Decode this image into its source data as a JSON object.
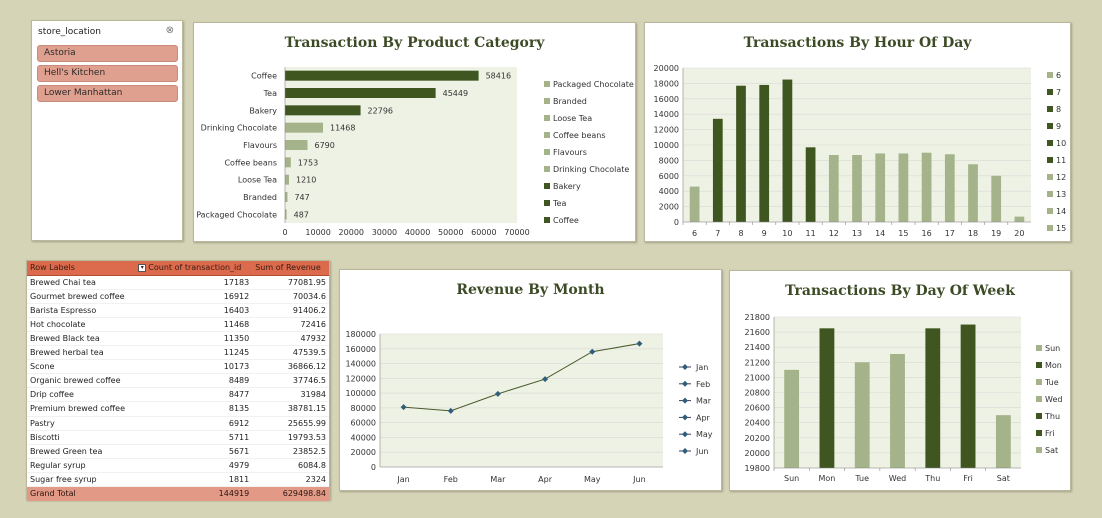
{
  "slicer": {
    "title": "store_location",
    "items": [
      "Astoria",
      "Hell's Kitchen",
      "Lower Manhattan"
    ]
  },
  "pivot": {
    "headers": [
      "Row Labels",
      "Count of transaction_id",
      "Sum of  Revenue"
    ],
    "rows": [
      [
        "Brewed Chai tea",
        "17183",
        "77081.95"
      ],
      [
        "Gourmet brewed coffee",
        "16912",
        "70034.6"
      ],
      [
        "Barista Espresso",
        "16403",
        "91406.2"
      ],
      [
        "Hot chocolate",
        "11468",
        "72416"
      ],
      [
        "Brewed Black tea",
        "11350",
        "47932"
      ],
      [
        "Brewed herbal tea",
        "11245",
        "47539.5"
      ],
      [
        "Scone",
        "10173",
        "36866.12"
      ],
      [
        "Organic brewed coffee",
        "8489",
        "37746.5"
      ],
      [
        "Drip coffee",
        "8477",
        "31984"
      ],
      [
        "Premium brewed coffee",
        "8135",
        "38781.15"
      ],
      [
        "Pastry",
        "6912",
        "25655.99"
      ],
      [
        "Biscotti",
        "5711",
        "19793.53"
      ],
      [
        "Brewed Green tea",
        "5671",
        "23852.5"
      ],
      [
        "Regular syrup",
        "4979",
        "6084.8"
      ],
      [
        "Sugar free syrup",
        "1811",
        "2324"
      ]
    ],
    "total": [
      "Grand Total",
      "144919",
      "629498.84"
    ]
  },
  "colors": {
    "dark": "#3f5621",
    "light": "#a4b38a",
    "plot_bg": "#eef2e4",
    "grid": "#d8d8d8"
  },
  "chart_data": [
    {
      "id": "category",
      "type": "bar",
      "title": "Transaction By Product Category",
      "categories": [
        "Coffee",
        "Tea",
        "Bakery",
        "Drinking Chocolate",
        "Flavours",
        "Coffee beans",
        "Loose Tea",
        "Branded",
        "Packaged Chocolate"
      ],
      "values": [
        58416,
        45449,
        22796,
        11468,
        6790,
        1753,
        1210,
        747,
        487
      ],
      "dark_categories": [
        "Coffee",
        "Tea",
        "Bakery"
      ],
      "xlim": [
        0,
        70000
      ],
      "xticks": [
        0,
        10000,
        20000,
        30000,
        40000,
        50000,
        60000,
        70000
      ],
      "legend": [
        "Packaged Chocolate",
        "Branded",
        "Loose Tea",
        "Coffee beans",
        "Flavours",
        "Drinking Chocolate",
        "Bakery",
        "Tea",
        "Coffee"
      ],
      "legend_position": "right"
    },
    {
      "id": "hour",
      "type": "bar",
      "title": "Transactions By Hour Of Day",
      "categories": [
        "6",
        "7",
        "8",
        "9",
        "10",
        "11",
        "12",
        "13",
        "14",
        "15",
        "16",
        "17",
        "18",
        "19",
        "20"
      ],
      "values": [
        4600,
        13400,
        17700,
        17800,
        18500,
        9700,
        8700,
        8700,
        8900,
        8900,
        9000,
        8800,
        7500,
        6000,
        700
      ],
      "dark_categories": [
        "7",
        "8",
        "9",
        "10",
        "11"
      ],
      "ylim": [
        0,
        20000
      ],
      "yticks": [
        0,
        2000,
        4000,
        6000,
        8000,
        10000,
        12000,
        14000,
        16000,
        18000,
        20000
      ],
      "legend": [
        "6",
        "7",
        "8",
        "9",
        "10",
        "11",
        "12",
        "13",
        "14",
        "15"
      ],
      "legend_position": "right"
    },
    {
      "id": "month",
      "type": "line",
      "title": "Revenue By Month",
      "categories": [
        "Jan",
        "Feb",
        "Mar",
        "Apr",
        "May",
        "Jun"
      ],
      "values": [
        81000,
        76000,
        99000,
        119000,
        156000,
        167000
      ],
      "ylim": [
        0,
        180000
      ],
      "yticks": [
        0,
        20000,
        40000,
        60000,
        80000,
        100000,
        120000,
        140000,
        160000,
        180000
      ],
      "legend": [
        "Jan",
        "Feb",
        "Mar",
        "Apr",
        "May",
        "Jun"
      ],
      "legend_position": "right"
    },
    {
      "id": "dow",
      "type": "bar",
      "title": "Transactions By Day Of Week",
      "categories": [
        "Sun",
        "Mon",
        "Tue",
        "Wed",
        "Thu",
        "Fri",
        "Sat"
      ],
      "values": [
        21100,
        21650,
        21200,
        21310,
        21650,
        21700,
        20500
      ],
      "dark_categories": [
        "Mon",
        "Thu",
        "Fri"
      ],
      "ylim": [
        19800,
        21800
      ],
      "yticks": [
        19800,
        20000,
        20200,
        20400,
        20600,
        20800,
        21000,
        21200,
        21400,
        21600,
        21800
      ],
      "legend": [
        "Sun",
        "Mon",
        "Tue",
        "Wed",
        "Thu",
        "Fri",
        "Sat"
      ],
      "legend_position": "right"
    }
  ]
}
